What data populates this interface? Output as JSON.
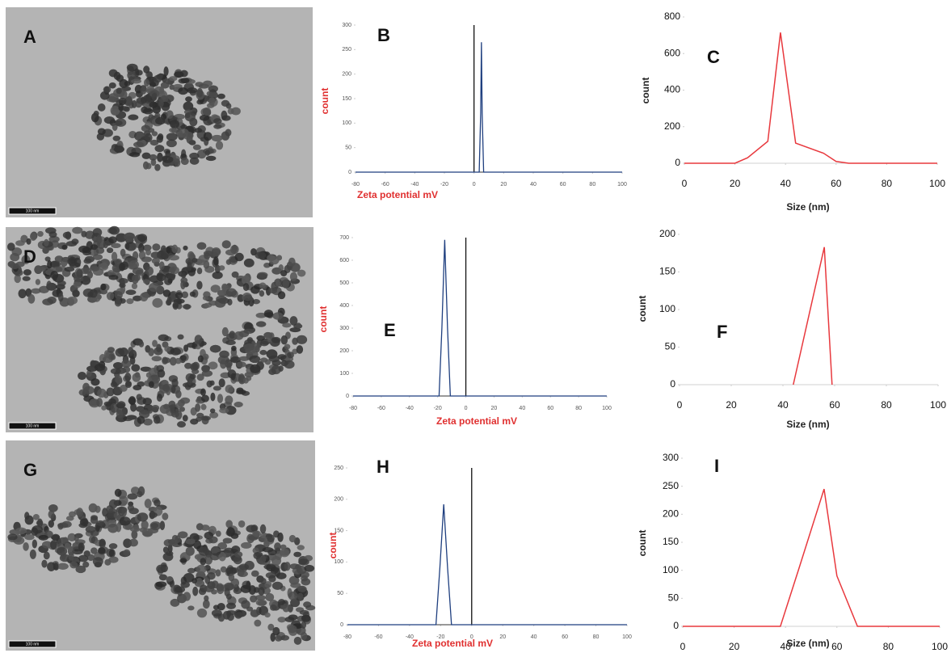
{
  "images": [
    {
      "label": "A",
      "scale_bar": "100 nm"
    },
    {
      "label": "D",
      "scale_bar": "100 nm"
    },
    {
      "label": "G",
      "scale_bar": "100 nm"
    }
  ],
  "chart_data": [
    {
      "type": "line",
      "label": "B",
      "xlabel": "Zeta potential mV",
      "ylabel": "count",
      "label_color": "#e03030",
      "xlim": [
        -80,
        100
      ],
      "xticks": [
        -80,
        -60,
        -40,
        -20,
        0,
        20,
        40,
        60,
        80,
        100
      ],
      "ylim": [
        0,
        300
      ],
      "yticks": [
        0,
        50,
        100,
        150,
        200,
        250,
        300
      ],
      "zero_line": true,
      "series": [
        {
          "color": "#1f3f7f",
          "x": [
            -80,
            3.5,
            4.5,
            5,
            5.5,
            6.5,
            100
          ],
          "values": [
            0,
            0,
            120,
            265,
            120,
            0,
            0
          ]
        }
      ]
    },
    {
      "type": "line",
      "label": "C",
      "xlabel": "Size (nm)",
      "ylabel": "count",
      "label_color": "#222222",
      "xlim": [
        0,
        100
      ],
      "xticks": [
        0,
        20,
        40,
        60,
        80,
        100
      ],
      "ylim": [
        0,
        800
      ],
      "yticks": [
        0,
        200,
        400,
        600,
        800
      ],
      "zero_line": false,
      "series": [
        {
          "color": "#e8383d",
          "x": [
            0,
            20,
            25,
            33,
            38,
            44,
            55,
            60,
            65,
            100
          ],
          "values": [
            0,
            0,
            30,
            120,
            715,
            110,
            55,
            10,
            0,
            0
          ]
        }
      ]
    },
    {
      "type": "line",
      "label": "E",
      "xlabel": "Zeta potential mV",
      "ylabel": "count",
      "label_color": "#e03030",
      "xlim": [
        -80,
        100
      ],
      "xticks": [
        -80,
        -60,
        -40,
        -20,
        0,
        20,
        40,
        60,
        80,
        100
      ],
      "ylim": [
        0,
        700
      ],
      "yticks": [
        0,
        100,
        200,
        300,
        400,
        500,
        600,
        700
      ],
      "zero_line": true,
      "series": [
        {
          "color": "#1f3f7f",
          "x": [
            -80,
            -19,
            -17,
            -15,
            -13,
            -11,
            100
          ],
          "values": [
            0,
            0,
            300,
            690,
            300,
            0,
            0
          ]
        }
      ]
    },
    {
      "type": "line",
      "label": "F",
      "xlabel": "Size (nm)",
      "ylabel": "count",
      "label_color": "#222222",
      "xlim": [
        0,
        100
      ],
      "xticks": [
        0,
        20,
        40,
        60,
        80,
        100
      ],
      "ylim": [
        0,
        200
      ],
      "yticks": [
        0,
        50,
        100,
        150,
        200
      ],
      "zero_line": false,
      "series": [
        {
          "color": "#e8383d",
          "x": [
            44,
            56,
            59
          ],
          "values": [
            0,
            183,
            0
          ]
        }
      ]
    },
    {
      "type": "line",
      "label": "H",
      "xlabel": "Zeta potential mV",
      "ylabel": "count",
      "label_color": "#e03030",
      "xlim": [
        -80,
        100
      ],
      "xticks": [
        -80,
        -60,
        -40,
        -20,
        0,
        20,
        40,
        60,
        80,
        100
      ],
      "ylim": [
        0,
        250
      ],
      "yticks": [
        0,
        50,
        100,
        150,
        200,
        250
      ],
      "zero_line": true,
      "series": [
        {
          "color": "#1f3f7f",
          "x": [
            -80,
            -23,
            -20.5,
            -18,
            -15.5,
            -13,
            100
          ],
          "values": [
            0,
            0,
            90,
            192,
            90,
            0,
            0
          ]
        }
      ]
    },
    {
      "type": "line",
      "label": "I",
      "xlabel": "Size (nm)",
      "ylabel": "count",
      "label_color": "#222222",
      "xlim": [
        0,
        100
      ],
      "xticks": [
        0,
        20,
        40,
        60,
        80,
        100
      ],
      "ylim": [
        0,
        300
      ],
      "yticks": [
        0,
        50,
        100,
        150,
        200,
        250,
        300
      ],
      "zero_line": false,
      "series": [
        {
          "color": "#e8383d",
          "x": [
            0,
            38,
            45,
            55,
            60,
            68,
            100
          ],
          "values": [
            0,
            0,
            100,
            245,
            90,
            0,
            0
          ]
        }
      ]
    }
  ]
}
